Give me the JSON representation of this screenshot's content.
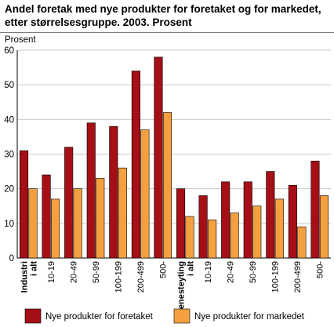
{
  "title": "Andel foretak med nye produkter for foretaket og for markedet, etter størrelsesgruppe. 2003. Prosent",
  "chart_data": {
    "type": "bar",
    "title": "Andel foretak med nye produkter for foretaket og for markedet, etter størrelsesgruppe. 2003. Prosent",
    "ylabel": "Prosent",
    "xlabel": "",
    "ylim": [
      0,
      60
    ],
    "yticks": [
      0,
      10,
      20,
      30,
      40,
      50,
      60
    ],
    "grid": true,
    "legend_position": "bottom",
    "categories": [
      {
        "lines": [
          "Industri",
          "i alt"
        ],
        "bold": true
      },
      {
        "lines": [
          "10-19"
        ],
        "bold": false
      },
      {
        "lines": [
          "20-49"
        ],
        "bold": false
      },
      {
        "lines": [
          "50-99"
        ],
        "bold": false
      },
      {
        "lines": [
          "100-199"
        ],
        "bold": false
      },
      {
        "lines": [
          "200-499"
        ],
        "bold": false
      },
      {
        "lines": [
          "500-"
        ],
        "bold": false
      },
      {
        "lines": [
          "Tjenesteyting",
          "i alt"
        ],
        "bold": true
      },
      {
        "lines": [
          "10-19"
        ],
        "bold": false
      },
      {
        "lines": [
          "20-49"
        ],
        "bold": false
      },
      {
        "lines": [
          "50-99"
        ],
        "bold": false
      },
      {
        "lines": [
          "100-199"
        ],
        "bold": false
      },
      {
        "lines": [
          "200-499"
        ],
        "bold": false
      },
      {
        "lines": [
          "500-"
        ],
        "bold": false
      }
    ],
    "series": [
      {
        "name": "Nye produkter for foretaket",
        "color": "#a50f15",
        "values": [
          31,
          24,
          32,
          39,
          38,
          54,
          58,
          20,
          18,
          22,
          22,
          25,
          21,
          28
        ]
      },
      {
        "name": "Nye produkter for markedet",
        "color": "#f5a040",
        "values": [
          20,
          17,
          20,
          23,
          26,
          37,
          42,
          12,
          11,
          13,
          15,
          17,
          9,
          18
        ]
      }
    ]
  }
}
